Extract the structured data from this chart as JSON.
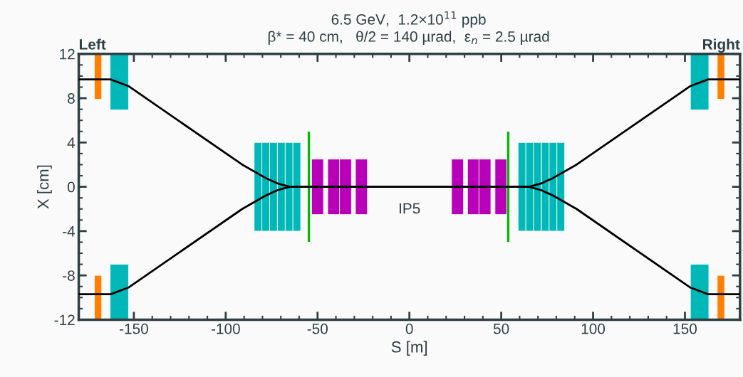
{
  "chart_data": {
    "type": "bar",
    "title": "6.5 GeV,  1.2×10$^{11}$ ppb",
    "subtitle": "β* = 40 cm,   θ/2 = 140 µrad,  ε$_{n}$ = 2.5 µrad",
    "xlabel": "S [m]",
    "ylabel": "X [cm]",
    "xlim": [
      -180,
      180
    ],
    "xticks": [
      -150,
      -100,
      -50,
      0,
      50,
      100,
      150
    ],
    "ylim": [
      -12,
      12
    ],
    "yticks": [
      -12,
      -8,
      -4,
      0,
      4,
      8,
      12
    ],
    "grid": false,
    "legend": false,
    "annotations": [
      "Left",
      "Right",
      "IP5"
    ],
    "series": [
      {
        "color": "#ff7f00",
        "x": [
          -169.5,
          169.6
        ],
        "base": [
          7.9,
          7.9
        ],
        "values": [
          4.1,
          4.1
        ]
      },
      {
        "color": "#ff7f00",
        "x": [
          -169.5,
          169.6
        ],
        "base": [
          -12,
          -12
        ],
        "values": [
          4.0,
          4.0
        ]
      },
      {
        "color": "#00b8b8",
        "x": [
          -157.9
        ],
        "base": [
          6.95
        ],
        "values": [
          5.05
        ]
      },
      {
        "color": "#00b8b8",
        "x": [
          -157.9
        ],
        "base": [
          -12
        ],
        "values": [
          5.0
        ]
      },
      {
        "color": "#00b8b8",
        "x": [
          -82.4,
          -78.2,
          -74.0,
          -69.7,
          -65.5,
          -61.3,
          61.3,
          65.5,
          69.7,
          74.0,
          78.2,
          82.4
        ],
        "base": [
          -4,
          -4,
          -4,
          -4,
          -4,
          -4,
          -4,
          -4,
          -4,
          -4,
          -4,
          -4
        ],
        "values": [
          8,
          8,
          8,
          8,
          8,
          8,
          8,
          8,
          8,
          8,
          8,
          8
        ]
      },
      {
        "color": "#00b8b8",
        "x": [
          158
        ],
        "base": [
          6.95
        ],
        "values": [
          5.05
        ]
      },
      {
        "color": "#00b8b8",
        "x": [
          158
        ],
        "base": [
          -12
        ],
        "values": [
          5.0
        ]
      },
      {
        "color": "#b800b8",
        "x": [
          -50.0,
          -41.2,
          -34.8,
          -26.1,
          26.2,
          34.9,
          41.1,
          49.85
        ],
        "base": [
          -2.5,
          -2.5,
          -2.5,
          -2.5,
          -2.5,
          -2.5,
          -2.5,
          -2.5
        ],
        "values": [
          5,
          5,
          5,
          5,
          5,
          5,
          5,
          5
        ]
      },
      {
        "color": "#00b800",
        "x": [
          -54.7,
          53.8
        ],
        "base": [
          -5,
          -5
        ],
        "values": [
          10,
          10
        ]
      },
      {
        "type": "line",
        "color": "#000000",
        "x": [
          -180,
          -162.6,
          -153,
          -91,
          -78.3,
          -71.7,
          -65.2,
          -60,
          60,
          65.2,
          71.7,
          78.3,
          91,
          153,
          162.6,
          180
        ],
        "values": [
          9.7,
          9.7,
          9.1,
          2.0,
          0.8,
          0.3,
          0.0,
          0,
          0,
          0.0,
          0.3,
          0.8,
          2.0,
          9.1,
          9.7,
          9.7
        ]
      },
      {
        "type": "line",
        "color": "#000000",
        "x": [
          -180,
          -162.6,
          -153,
          -91,
          -78.3,
          -71.7,
          -65.2,
          -60,
          60,
          65.2,
          71.7,
          78.3,
          91,
          153,
          162.6,
          180
        ],
        "values": [
          -9.7,
          -9.7,
          -9.1,
          -2.0,
          -0.8,
          -0.3,
          0.0,
          0,
          0,
          0.0,
          -0.3,
          -0.8,
          -2.0,
          -9.1,
          -9.7,
          -9.7
        ]
      }
    ]
  }
}
